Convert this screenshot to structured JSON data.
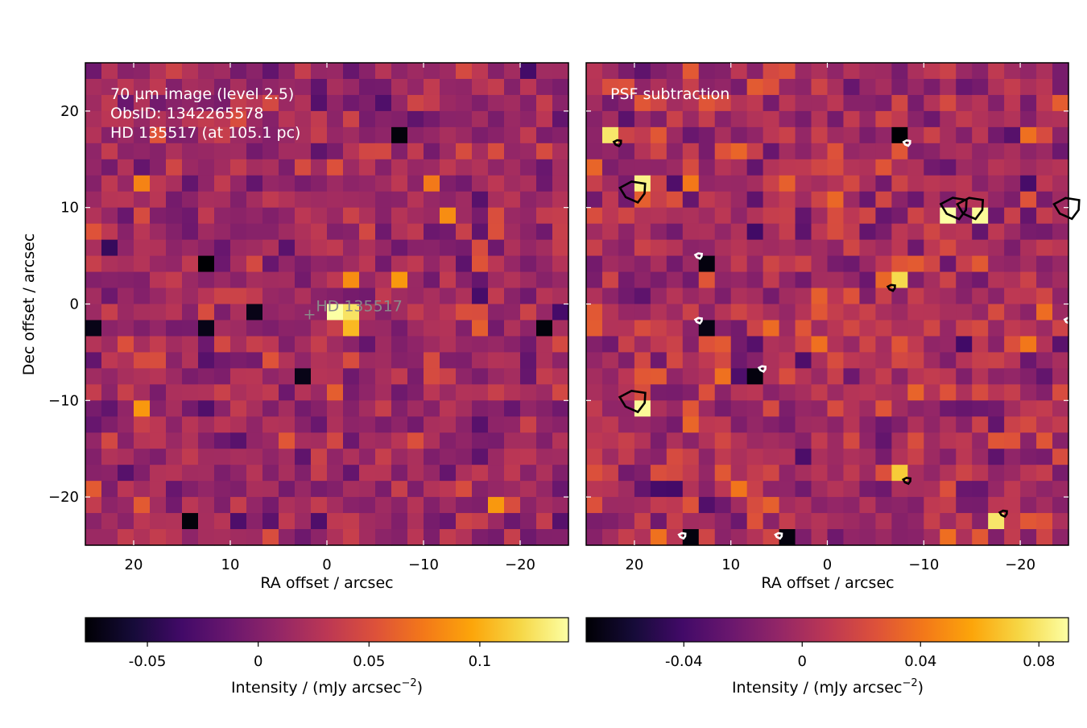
{
  "chart_data": [
    {
      "type": "heatmap",
      "panel": "left",
      "annotation_lines": [
        "70 µm image (level 2.5)",
        "ObsID: 1342265578",
        "HD 135517 (at 105.1 pc)"
      ],
      "xlabel": "RA offset / arcsec",
      "ylabel": "Dec offset / arcsec",
      "xlim": [
        25,
        -25
      ],
      "ylim": [
        -25,
        25
      ],
      "xticks": [
        {
          "v": 20,
          "label": "20"
        },
        {
          "v": 10,
          "label": "10"
        },
        {
          "v": 0,
          "label": "0"
        },
        {
          "v": -10,
          "label": "−10"
        },
        {
          "v": -20,
          "label": "−20"
        }
      ],
      "yticks": [
        {
          "v": 20,
          "label": "20"
        },
        {
          "v": 10,
          "label": "10"
        },
        {
          "v": 0,
          "label": "0"
        },
        {
          "v": -10,
          "label": "−10"
        },
        {
          "v": -20,
          "label": "−20"
        }
      ],
      "grid": {
        "nx": 30,
        "ny": 30,
        "pixel_size_arcsec": 1.6667
      },
      "colormap": "inferno",
      "target": {
        "label": "HD 135517",
        "x": 1.8,
        "y": -1.0
      },
      "colorbar": {
        "label": "Intensity / (mJy arcsec",
        "label_exp": "−2",
        "label_close": ")",
        "range": [
          -0.078,
          0.14
        ],
        "ticks": [
          {
            "v": -0.05,
            "label": "-0.05"
          },
          {
            "v": 0,
            "label": "0"
          },
          {
            "v": 0.05,
            "label": "0.05"
          },
          {
            "v": 0.1,
            "label": "0.1"
          }
        ]
      },
      "bright_pixels": [
        {
          "x": 0,
          "y": 0,
          "value": 0.14
        },
        {
          "x": -1.7,
          "y": 0,
          "value": 0.125
        },
        {
          "x": -1.7,
          "y": -1.7,
          "value": 0.11
        },
        {
          "x": -3.3,
          "y": -1.7,
          "value": 0.105
        },
        {
          "x": -3.3,
          "y": 1.7,
          "value": 0.085
        },
        {
          "x": -6.7,
          "y": 1.7,
          "value": 0.09
        },
        {
          "x": -13.3,
          "y": 10,
          "value": 0.095
        },
        {
          "x": -11.7,
          "y": 10,
          "value": 0.085
        },
        {
          "x": 20,
          "y": 13.3,
          "value": 0.08
        },
        {
          "x": 20,
          "y": -10,
          "value": 0.09
        },
        {
          "x": -16.7,
          "y": -20,
          "value": 0.09
        },
        {
          "x": -10,
          "y": 13.3,
          "value": 0.075
        }
      ],
      "dark_pixels": [
        {
          "x": 13.3,
          "y": 5,
          "value": -0.078
        },
        {
          "x": -6.7,
          "y": 16.7,
          "value": -0.075
        },
        {
          "x": 6.7,
          "y": 0,
          "value": -0.07
        },
        {
          "x": 3.3,
          "y": -6.7,
          "value": -0.07
        },
        {
          "x": 13.3,
          "y": -1.7,
          "value": -0.07
        },
        {
          "x": 25,
          "y": -1.7,
          "value": -0.07
        },
        {
          "x": 15,
          "y": -23.3,
          "value": -0.075
        },
        {
          "x": -23.3,
          "y": -1.7,
          "value": -0.075
        }
      ]
    },
    {
      "type": "heatmap",
      "panel": "right",
      "annotation_lines": [
        "PSF subtraction"
      ],
      "xlabel": "RA offset / arcsec",
      "xlim": [
        25,
        -25
      ],
      "ylim": [
        -25,
        25
      ],
      "xticks": [
        {
          "v": 20,
          "label": "20"
        },
        {
          "v": 10,
          "label": "10"
        },
        {
          "v": 0,
          "label": "0"
        },
        {
          "v": -10,
          "label": "−10"
        },
        {
          "v": -20,
          "label": "−20"
        }
      ],
      "grid": {
        "nx": 30,
        "ny": 30,
        "pixel_size_arcsec": 1.6667
      },
      "colormap": "inferno",
      "contours": "black and white significance contours around the brightest and faintest residual pixels",
      "colorbar": {
        "label": "Intensity / (mJy arcsec",
        "label_exp": "−2",
        "label_close": ")",
        "range": [
          -0.073,
          0.09
        ],
        "ticks": [
          {
            "v": -0.04,
            "label": "-0.04"
          },
          {
            "v": 0,
            "label": "0"
          },
          {
            "v": 0.04,
            "label": "0.04"
          },
          {
            "v": 0.08,
            "label": "0.08"
          }
        ]
      },
      "bright_pixels": [
        {
          "x": 21.7,
          "y": 16.7,
          "value": 0.08
        },
        {
          "x": 20,
          "y": 11.7,
          "value": 0.085
        },
        {
          "x": -13.3,
          "y": 10,
          "value": 0.09
        },
        {
          "x": -15,
          "y": 10,
          "value": 0.088
        },
        {
          "x": -6.7,
          "y": 1.7,
          "value": 0.075
        },
        {
          "x": 20,
          "y": -10,
          "value": 0.088
        },
        {
          "x": -8.3,
          "y": -18.3,
          "value": 0.07
        },
        {
          "x": -18.3,
          "y": -21.7,
          "value": 0.08
        },
        {
          "x": -25,
          "y": 10,
          "value": 0.085
        }
      ],
      "dark_pixels": [
        {
          "x": -8.3,
          "y": 16.7,
          "value": -0.073
        },
        {
          "x": 13.3,
          "y": 5,
          "value": -0.07
        },
        {
          "x": 13.3,
          "y": -1.7,
          "value": -0.068
        },
        {
          "x": 6.7,
          "y": -6.7,
          "value": -0.07
        },
        {
          "x": 15,
          "y": -24,
          "value": -0.07
        },
        {
          "x": 5,
          "y": -24,
          "value": -0.07
        },
        {
          "x": -25,
          "y": -1.7,
          "value": -0.068
        }
      ]
    }
  ]
}
